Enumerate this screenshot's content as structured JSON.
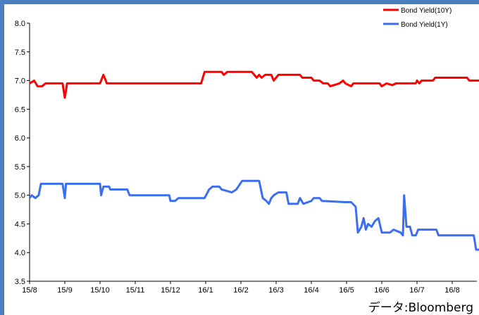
{
  "chart_data": {
    "type": "line",
    "x_tick_labels": [
      "15/8",
      "15/9",
      "15/10",
      "15/11",
      "15/12",
      "16/1",
      "16/2",
      "16/3",
      "16/4",
      "16/5",
      "16/6",
      "16/7",
      "16/8"
    ],
    "ylim": [
      3.5,
      8.0
    ],
    "y_ticks": [
      "8.0",
      "7.5",
      "7.0",
      "6.5",
      "6.0",
      "5.5",
      "5.0",
      "4.5",
      "4.0",
      "3.5"
    ],
    "grid": false,
    "legend_position": "top-right",
    "series": [
      {
        "name": "Bond Yield(10Y)",
        "color": "#ff0000",
        "points": [
          [
            "15/08/01",
            6.95
          ],
          [
            "15/08/05",
            7.0
          ],
          [
            "15/08/08",
            6.9
          ],
          [
            "15/08/12",
            6.9
          ],
          [
            "15/08/15",
            6.95
          ],
          [
            "15/08/30",
            6.95
          ],
          [
            "15/09/01",
            6.7
          ],
          [
            "15/09/03",
            6.95
          ],
          [
            "15/10/01",
            6.95
          ],
          [
            "15/10/04",
            7.1
          ],
          [
            "15/10/07",
            6.95
          ],
          [
            "15/12/28",
            6.95
          ],
          [
            "15/12/31",
            7.15
          ],
          [
            "16/01/15",
            7.15
          ],
          [
            "16/01/17",
            7.1
          ],
          [
            "16/01/20",
            7.15
          ],
          [
            "16/02/10",
            7.15
          ],
          [
            "16/02/14",
            7.05
          ],
          [
            "16/02/16",
            7.1
          ],
          [
            "16/02/18",
            7.05
          ],
          [
            "16/02/21",
            7.1
          ],
          [
            "16/02/26",
            7.1
          ],
          [
            "16/02/28",
            7.0
          ],
          [
            "16/03/03",
            7.1
          ],
          [
            "16/03/22",
            7.1
          ],
          [
            "16/03/24",
            7.05
          ],
          [
            "16/04/01",
            7.05
          ],
          [
            "16/04/03",
            7.0
          ],
          [
            "16/04/08",
            7.0
          ],
          [
            "16/04/11",
            6.95
          ],
          [
            "16/04/15",
            6.95
          ],
          [
            "16/04/17",
            6.9
          ],
          [
            "16/04/25",
            6.95
          ],
          [
            "16/04/28",
            7.0
          ],
          [
            "16/04/30",
            6.95
          ],
          [
            "16/05/05",
            6.9
          ],
          [
            "16/05/07",
            6.95
          ],
          [
            "16/05/30",
            6.95
          ],
          [
            "16/06/01",
            6.9
          ],
          [
            "16/06/05",
            6.95
          ],
          [
            "16/06/10",
            6.92
          ],
          [
            "16/06/13",
            6.95
          ],
          [
            "16/06/30",
            6.95
          ],
          [
            "16/07/01",
            7.0
          ],
          [
            "16/07/03",
            6.95
          ],
          [
            "16/07/05",
            7.0
          ],
          [
            "16/07/15",
            7.0
          ],
          [
            "16/07/17",
            7.05
          ],
          [
            "16/08/14",
            7.05
          ],
          [
            "16/08/16",
            7.0
          ],
          [
            "16/08/31",
            7.0
          ]
        ]
      },
      {
        "name": "Bond Yield(1Y)",
        "color": "#3c6ef0",
        "points": [
          [
            "15/08/01",
            4.95
          ],
          [
            "15/08/03",
            5.0
          ],
          [
            "15/08/06",
            4.95
          ],
          [
            "15/08/09",
            5.0
          ],
          [
            "15/08/11",
            5.2
          ],
          [
            "15/08/30",
            5.2
          ],
          [
            "15/09/01",
            4.95
          ],
          [
            "15/09/02",
            5.2
          ],
          [
            "15/10/01",
            5.2
          ],
          [
            "15/10/02",
            5.0
          ],
          [
            "15/10/04",
            5.15
          ],
          [
            "15/10/09",
            5.15
          ],
          [
            "15/10/10",
            5.1
          ],
          [
            "15/10/25",
            5.1
          ],
          [
            "15/10/27",
            5.0
          ],
          [
            "15/11/30",
            5.0
          ],
          [
            "15/12/01",
            4.9
          ],
          [
            "15/12/05",
            4.9
          ],
          [
            "15/12/08",
            4.95
          ],
          [
            "15/12/31",
            4.95
          ],
          [
            "16/01/04",
            5.1
          ],
          [
            "16/01/07",
            5.15
          ],
          [
            "16/01/13",
            5.15
          ],
          [
            "16/01/15",
            5.1
          ],
          [
            "16/01/24",
            5.05
          ],
          [
            "16/01/28",
            5.1
          ],
          [
            "16/02/02",
            5.25
          ],
          [
            "16/02/16",
            5.25
          ],
          [
            "16/02/19",
            4.95
          ],
          [
            "16/02/22",
            4.9
          ],
          [
            "16/02/24",
            4.85
          ],
          [
            "16/02/26",
            4.95
          ],
          [
            "16/02/28",
            5.0
          ],
          [
            "16/03/03",
            5.05
          ],
          [
            "16/03/10",
            5.05
          ],
          [
            "16/03/12",
            4.85
          ],
          [
            "16/03/20",
            4.85
          ],
          [
            "16/03/22",
            4.95
          ],
          [
            "16/03/25",
            4.85
          ],
          [
            "16/04/01",
            4.9
          ],
          [
            "16/04/03",
            4.95
          ],
          [
            "16/04/08",
            4.95
          ],
          [
            "16/04/10",
            4.9
          ],
          [
            "16/04/30",
            4.88
          ],
          [
            "16/05/05",
            4.88
          ],
          [
            "16/05/09",
            4.8
          ],
          [
            "16/05/11",
            4.35
          ],
          [
            "16/05/14",
            4.45
          ],
          [
            "16/05/16",
            4.6
          ],
          [
            "16/05/18",
            4.4
          ],
          [
            "16/05/20",
            4.5
          ],
          [
            "16/05/23",
            4.45
          ],
          [
            "16/05/26",
            4.55
          ],
          [
            "16/05/29",
            4.6
          ],
          [
            "16/06/01",
            4.35
          ],
          [
            "16/06/08",
            4.35
          ],
          [
            "16/06/11",
            4.4
          ],
          [
            "16/06/17",
            4.35
          ],
          [
            "16/06/19",
            4.3
          ],
          [
            "16/06/20",
            5.0
          ],
          [
            "16/06/22",
            4.45
          ],
          [
            "16/06/25",
            4.45
          ],
          [
            "16/06/27",
            4.3
          ],
          [
            "16/06/30",
            4.3
          ],
          [
            "16/07/02",
            4.4
          ],
          [
            "16/07/18",
            4.4
          ],
          [
            "16/07/20",
            4.3
          ],
          [
            "16/08/20",
            4.3
          ],
          [
            "16/08/22",
            4.05
          ],
          [
            "16/08/29",
            4.05
          ],
          [
            "16/08/31",
            4.1
          ]
        ]
      }
    ]
  },
  "source_label": "データ:Bloomberg"
}
